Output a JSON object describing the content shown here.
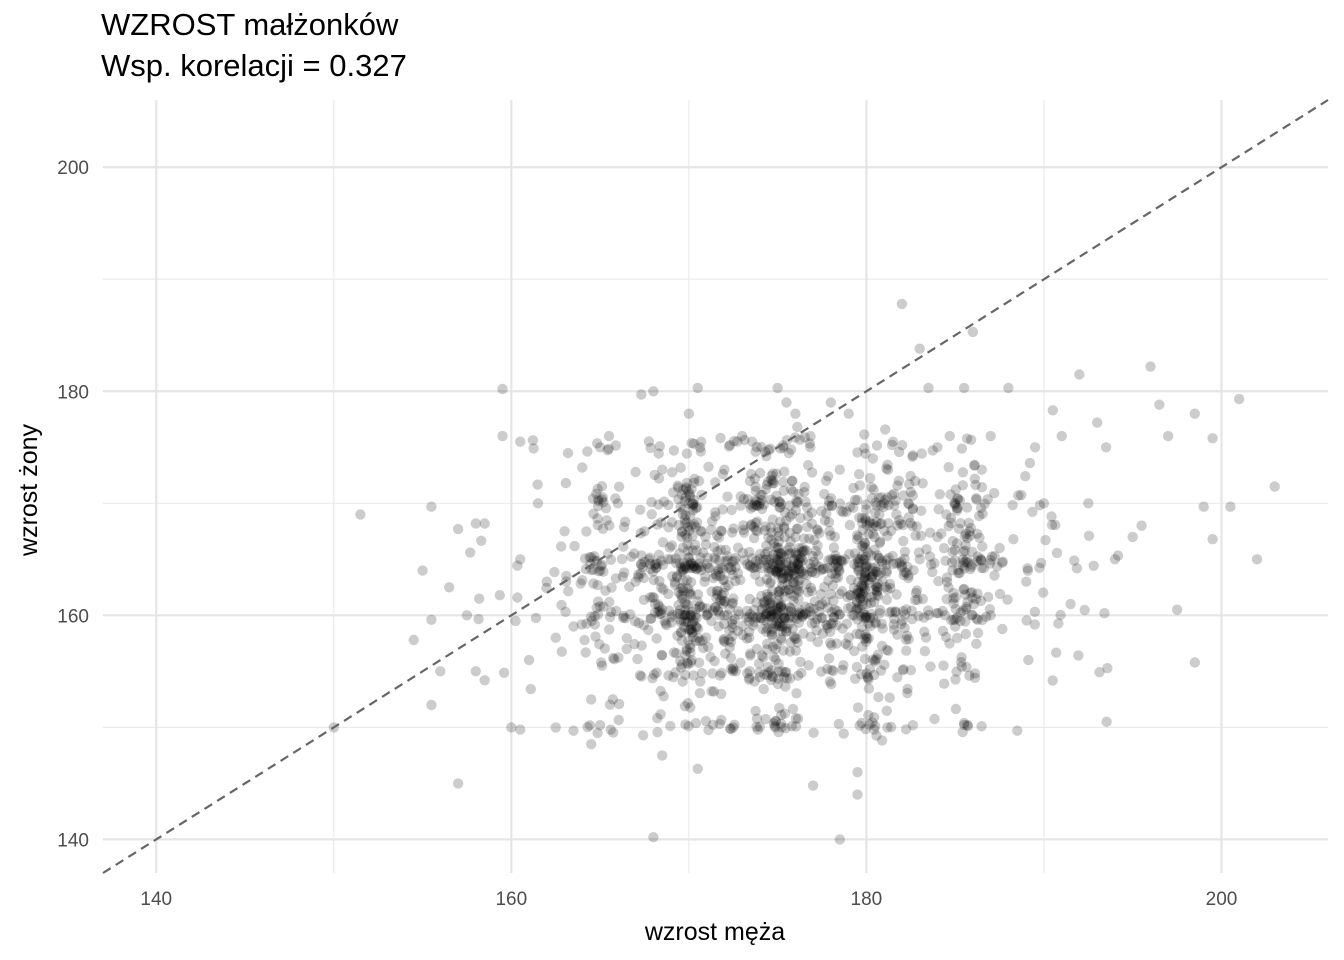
{
  "chart_data": {
    "type": "scatter",
    "title": "WZROST małżonków",
    "subtitle": "Wsp. korelacji = 0.327",
    "xlabel": "wzrost męża",
    "ylabel": "wzrost żony",
    "xlim": [
      137,
      206
    ],
    "ylim": [
      137,
      206
    ],
    "x_ticks": [
      140,
      160,
      180,
      200
    ],
    "y_ticks": [
      140,
      160,
      180,
      200
    ],
    "correlation": 0.327,
    "grid": true,
    "reference_line": {
      "type": "y = x",
      "style": "dashed",
      "color": "#666666"
    },
    "point_color": "#000000",
    "point_opacity": 0.2,
    "points": [
      [
        151.5,
        169
      ],
      [
        150,
        150
      ],
      [
        154.5,
        157.8
      ],
      [
        155,
        164
      ],
      [
        155.5,
        159.6
      ],
      [
        155.5,
        152
      ],
      [
        155.5,
        169.7
      ],
      [
        156,
        155
      ],
      [
        156.5,
        162.5
      ],
      [
        157,
        145
      ],
      [
        157,
        167.7
      ],
      [
        157.5,
        160
      ],
      [
        158,
        168.2
      ],
      [
        158,
        155
      ],
      [
        158.5,
        154.2
      ],
      [
        158.5,
        168.2
      ],
      [
        159.5,
        180.2
      ],
      [
        159.5,
        176
      ],
      [
        160,
        150
      ],
      [
        160.5,
        165
      ],
      [
        160.5,
        149.8
      ],
      [
        160.5,
        175.5
      ],
      [
        161,
        156
      ],
      [
        161.5,
        170
      ],
      [
        162,
        163
      ],
      [
        162.5,
        150
      ],
      [
        162.5,
        158
      ],
      [
        163,
        167.5
      ],
      [
        163.5,
        159
      ],
      [
        163.5,
        149.7
      ],
      [
        164,
        173.2
      ],
      [
        164.5,
        148.5
      ],
      [
        164.5,
        152.5
      ],
      [
        165,
        175
      ],
      [
        165.5,
        176
      ],
      [
        166,
        170
      ],
      [
        166.5,
        157
      ],
      [
        167,
        163
      ],
      [
        167.5,
        167.5
      ],
      [
        168,
        180
      ],
      [
        168,
        140.2
      ],
      [
        168.5,
        147.5
      ],
      [
        168.5,
        173
      ],
      [
        169,
        165
      ],
      [
        170,
        178
      ],
      [
        170.5,
        180.3
      ],
      [
        170.5,
        146.3
      ],
      [
        171,
        160
      ],
      [
        171.5,
        165
      ],
      [
        172,
        173
      ],
      [
        172.5,
        150
      ],
      [
        173,
        176
      ],
      [
        173.5,
        168
      ],
      [
        174,
        170
      ],
      [
        175,
        180.3
      ],
      [
        175.5,
        179
      ],
      [
        176,
        178
      ],
      [
        176.5,
        171
      ],
      [
        177,
        144.8
      ],
      [
        177.5,
        161
      ],
      [
        178,
        179
      ],
      [
        178.5,
        173
      ],
      [
        178.5,
        140
      ],
      [
        179,
        178
      ],
      [
        179.5,
        146
      ],
      [
        179.5,
        144
      ],
      [
        180.5,
        156
      ],
      [
        181,
        170
      ],
      [
        181.5,
        175.5
      ],
      [
        182,
        187.8
      ],
      [
        182.5,
        171
      ],
      [
        183,
        183.8
      ],
      [
        183.5,
        180.3
      ],
      [
        184,
        175
      ],
      [
        184.5,
        169
      ],
      [
        185,
        159
      ],
      [
        185.5,
        180.3
      ],
      [
        186,
        185.3
      ],
      [
        186.5,
        173
      ],
      [
        187,
        176
      ],
      [
        187.5,
        166
      ],
      [
        188,
        180.3
      ],
      [
        188.5,
        149.7
      ],
      [
        189,
        163
      ],
      [
        189.5,
        175
      ],
      [
        190,
        170
      ],
      [
        190.5,
        178.3
      ],
      [
        191,
        176
      ],
      [
        191.5,
        161
      ],
      [
        192,
        181.5
      ],
      [
        192.5,
        170
      ],
      [
        193,
        177.2
      ],
      [
        193.5,
        175
      ],
      [
        194,
        165
      ],
      [
        195,
        167
      ],
      [
        195.5,
        168
      ],
      [
        196,
        182.2
      ],
      [
        196.5,
        178.8
      ],
      [
        197,
        176
      ],
      [
        197.5,
        160.5
      ],
      [
        198.5,
        178
      ],
      [
        198.5,
        155.8
      ],
      [
        199,
        169.7
      ],
      [
        199.5,
        166.8
      ],
      [
        199.5,
        175.8
      ],
      [
        200.5,
        169.7
      ],
      [
        201,
        179.3
      ],
      [
        202,
        165
      ],
      [
        203,
        171.5
      ],
      [
        185,
        170
      ],
      [
        184,
        167
      ],
      [
        183,
        165
      ],
      [
        187,
        160
      ],
      [
        178,
        165
      ],
      [
        172,
        160
      ],
      [
        174,
        163
      ],
      [
        176,
        167
      ],
      [
        170,
        170
      ]
    ]
  }
}
